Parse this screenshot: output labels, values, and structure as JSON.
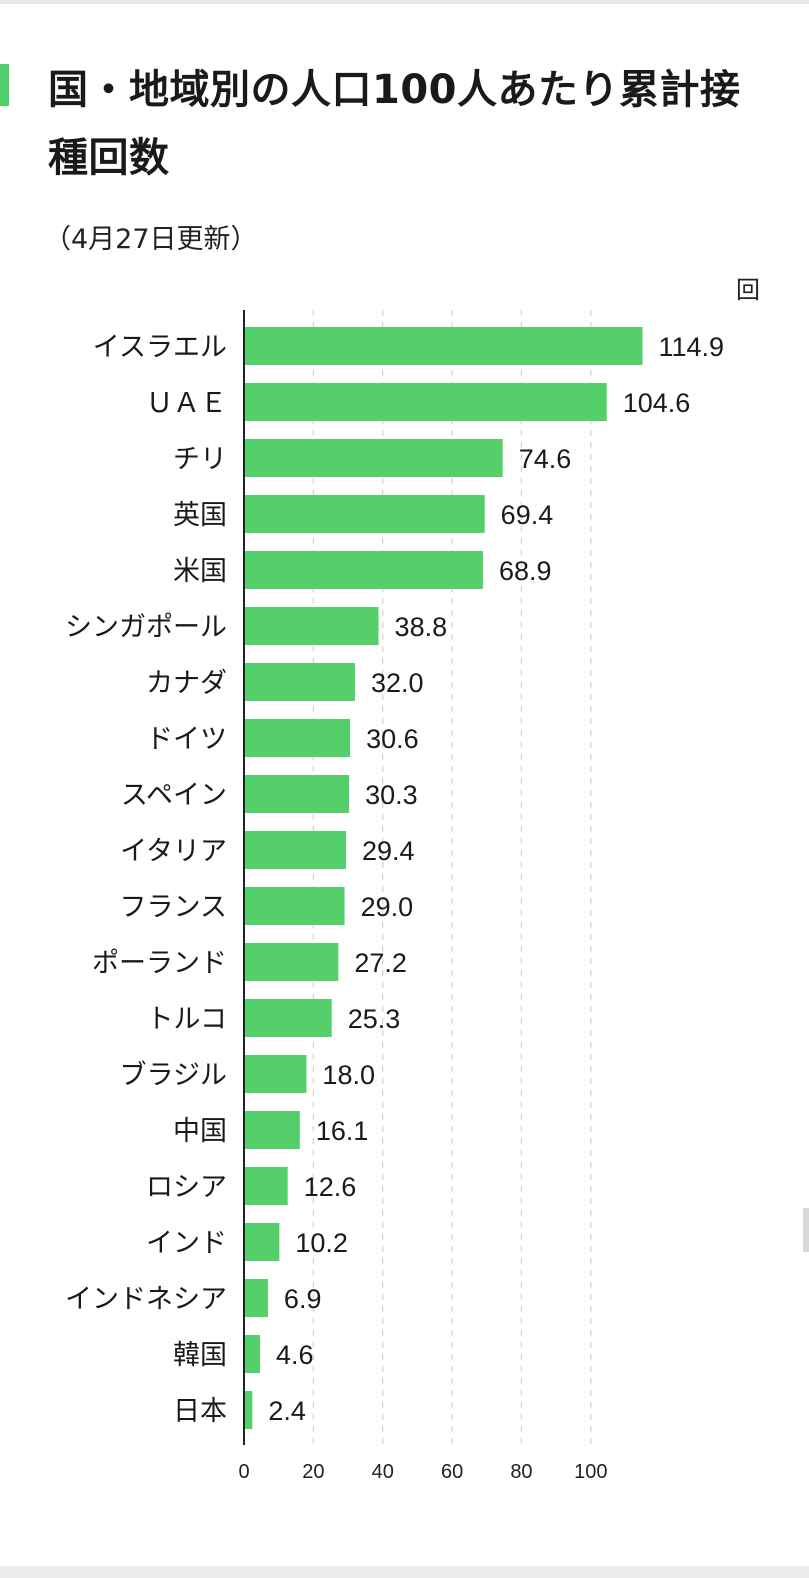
{
  "header": {
    "title": "国・地域別の人口100人あたり累計接種回数",
    "subtitle": "（4月27日更新）",
    "unit": "回"
  },
  "colors": {
    "accent": "#4fd06a",
    "bar": "#55cf6a",
    "axis": "#222222",
    "grid": "#d6d6d6"
  },
  "chart_data": {
    "type": "bar",
    "orientation": "horizontal",
    "title": "国・地域別の人口100人あたり累計接種回数",
    "subtitle": "（4月27日更新）",
    "unit": "回",
    "categories": [
      "イスラエル",
      "ＵＡＥ",
      "チリ",
      "英国",
      "米国",
      "シンガポール",
      "カナダ",
      "ドイツ",
      "スペイン",
      "イタリア",
      "フランス",
      "ポーランド",
      "トルコ",
      "ブラジル",
      "中国",
      "ロシア",
      "インド",
      "インドネシア",
      "韓国",
      "日本"
    ],
    "values": [
      114.9,
      104.6,
      74.6,
      69.4,
      68.9,
      38.8,
      32.0,
      30.6,
      30.3,
      29.4,
      29.0,
      27.2,
      25.3,
      18.0,
      16.1,
      12.6,
      10.2,
      6.9,
      4.6,
      2.4
    ],
    "value_labels": [
      "114.9",
      "104.6",
      "74.6",
      "69.4",
      "68.9",
      "38.8",
      "32.0",
      "30.6",
      "30.3",
      "29.4",
      "29.0",
      "27.2",
      "25.3",
      "18.0",
      "16.1",
      "12.6",
      "10.2",
      "6.9",
      "4.6",
      "2.4"
    ],
    "xticks": [
      0,
      20,
      40,
      60,
      80,
      100
    ],
    "xlim": [
      0,
      120
    ],
    "grid": true,
    "grid_style": "dashed vertical",
    "legend": "none"
  }
}
